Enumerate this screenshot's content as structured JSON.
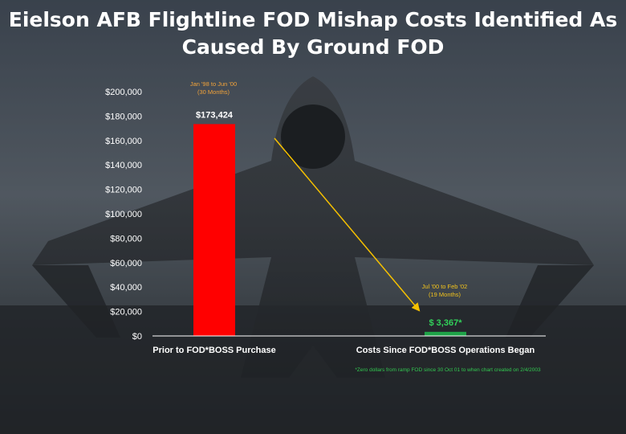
{
  "title_line1": "Eielson AFB Flightline FOD Mishap Costs Identified As",
  "title_line2": "Caused By Ground FOD",
  "colors": {
    "bar_before": "#ff0000",
    "bar_after": "#1fa348",
    "annotation_before": "#f2a33a",
    "annotation_after": "#f2c31c",
    "arrow": "#f5c000",
    "footnote": "#32c850",
    "value_after": "#32d25a"
  },
  "chart_data": {
    "type": "bar",
    "categories": [
      "Prior to FOD*BOSS Purchase",
      "Costs Since FOD*BOSS Operations Began"
    ],
    "values": [
      173424,
      3367
    ],
    "value_labels": [
      "$173,424",
      "$ 3,367*"
    ],
    "period_labels": [
      [
        "Jan '98 to Jun '00",
        "(30 Months)"
      ],
      [
        "Jul '00 to Feb '02",
        "(19 Months)"
      ]
    ],
    "ylim": [
      0,
      200000
    ],
    "yticks": [
      0,
      20000,
      40000,
      60000,
      80000,
      100000,
      120000,
      140000,
      160000,
      180000,
      200000
    ],
    "ytick_labels": [
      "$0",
      "$20,000",
      "$40,000",
      "$60,000",
      "$80,000",
      "$100,000",
      "$120,000",
      "$140,000",
      "$160,000",
      "$180,000",
      "$200,000"
    ],
    "grid": false,
    "footnote": "*Zero dollars from ramp FOD since 30 Oct 01 to when chart created on 2/4/2003"
  }
}
